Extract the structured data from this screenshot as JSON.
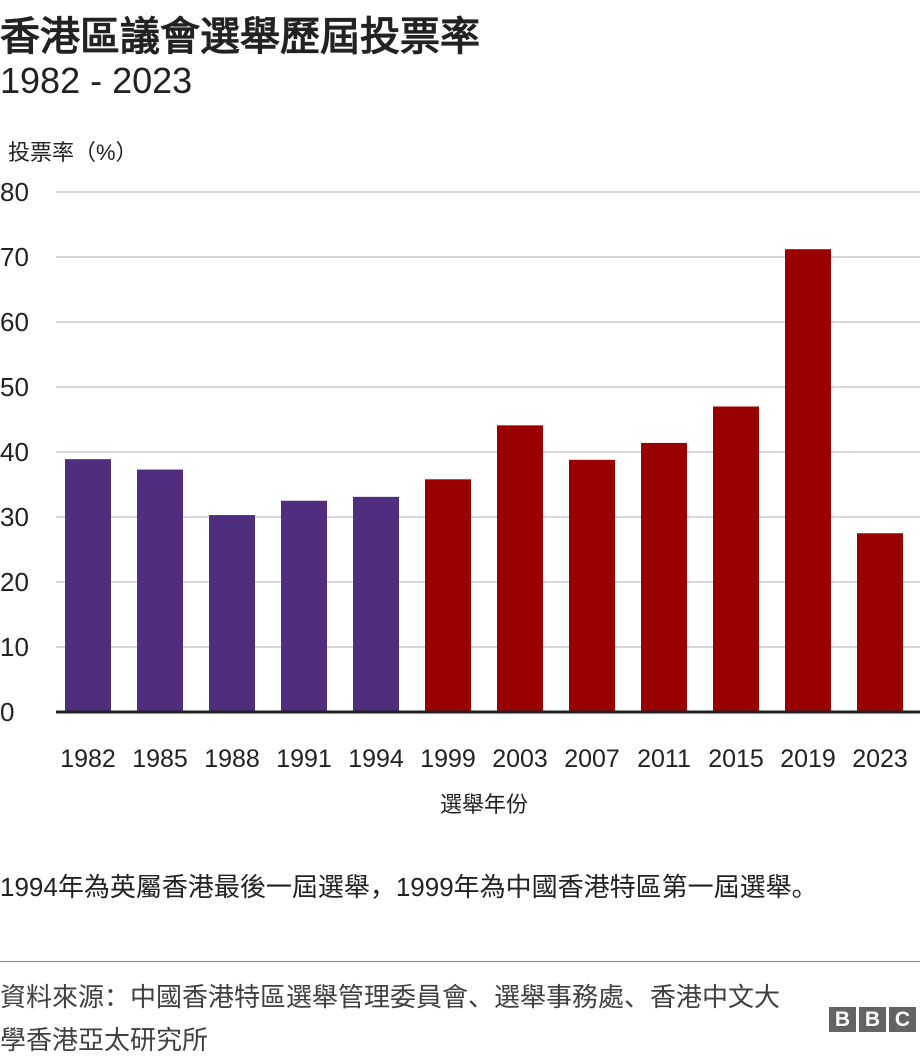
{
  "chart_data": {
    "type": "bar",
    "title": "香港區議會選舉歷屆投票率",
    "subtitle": "1982 - 2023",
    "ylabel": "投票率（%）",
    "xlabel": "選舉年份",
    "ylim": [
      0,
      80
    ],
    "yticks": [
      0,
      10,
      20,
      30,
      40,
      50,
      60,
      70,
      80
    ],
    "grid": true,
    "categories": [
      "1982",
      "1985",
      "1988",
      "1991",
      "1994",
      "1999",
      "2003",
      "2007",
      "2011",
      "2015",
      "2019",
      "2023"
    ],
    "values": [
      38.9,
      37.3,
      30.3,
      32.5,
      33.1,
      35.8,
      44.1,
      38.8,
      41.4,
      47.0,
      71.2,
      27.5
    ],
    "colors": [
      "#4f2d7f",
      "#4f2d7f",
      "#4f2d7f",
      "#4f2d7f",
      "#4f2d7f",
      "#990000",
      "#990000",
      "#990000",
      "#990000",
      "#990000",
      "#990000",
      "#990000"
    ]
  },
  "note": "1994年為英屬香港最後一屆選舉，1999年為中國香港特區第一屆選舉。",
  "source": "資料來源：中國香港特區選舉管理委員會、選舉事務處、香港中文大學香港亞太研究所",
  "logo": [
    "B",
    "B",
    "C"
  ]
}
